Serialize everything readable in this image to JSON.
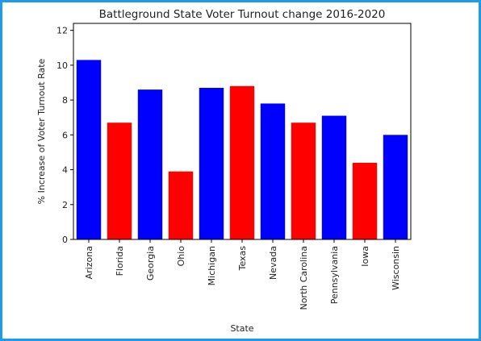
{
  "chart_data": {
    "type": "bar",
    "title": "Battleground State Voter Turnout change 2016-2020",
    "xlabel": "State",
    "ylabel": "% Increase of Voter Turnout Rate",
    "categories": [
      "Arizona",
      "Florida",
      "Georgia",
      "Ohio",
      "Michigan",
      "Texas",
      "Nevada",
      "North Carolina",
      "Pennsylvania",
      "Iowa",
      "Wisconsin"
    ],
    "values": [
      10.3,
      6.7,
      8.6,
      3.9,
      8.7,
      8.8,
      7.8,
      6.7,
      7.1,
      4.4,
      6.0
    ],
    "bar_colors": [
      "#0000ff",
      "#ff0000",
      "#0000ff",
      "#ff0000",
      "#0000ff",
      "#ff0000",
      "#0000ff",
      "#ff0000",
      "#0000ff",
      "#ff0000",
      "#0000ff"
    ],
    "yticks": [
      0,
      2,
      4,
      6,
      8,
      10,
      12
    ],
    "ylim": [
      0,
      12.4
    ],
    "grid": false,
    "legend": "none"
  },
  "frame_color": "#1e9bea"
}
